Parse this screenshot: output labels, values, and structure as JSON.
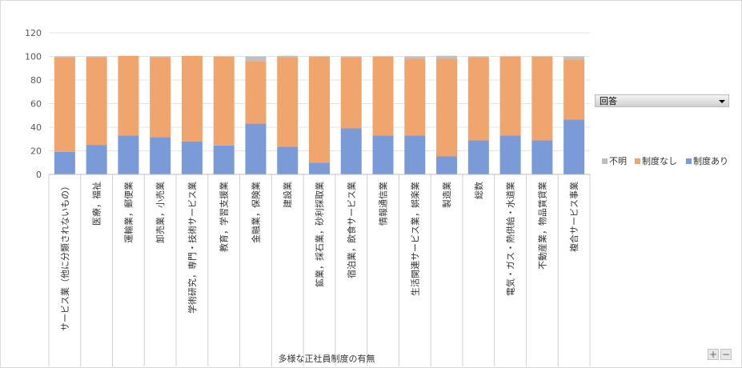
{
  "chart_data": {
    "type": "bar",
    "stacked": true,
    "xlabel": "多様な正社員制度の有無",
    "ylim": [
      0,
      120
    ],
    "yticks": [
      0,
      20,
      40,
      60,
      80,
      100,
      120
    ],
    "grid": true,
    "legend_placement": "right",
    "categories": [
      "サービス業（他に分類されないもの）",
      "医療，福祉",
      "運輸業，郵便業",
      "卸売業，小売業",
      "学術研究，専門・技術サービス業",
      "教育，学習支援業",
      "金融業，保険業",
      "建設業",
      "鉱業，採石業，砂利採取業",
      "宿泊業，飲食サービス業",
      "情報通信業",
      "生活関連サービス業，娯楽業",
      "製造業",
      "総数",
      "電気・ガス・熱供給・水道業",
      "不動産業，物品賃貸業",
      "複合サービス事業"
    ],
    "series": [
      {
        "name": "制度あり",
        "color": "#7a9ad8",
        "values": [
          19,
          25,
          33,
          31.5,
          28,
          24.5,
          43,
          23.5,
          10,
          39,
          33,
          33,
          15.5,
          29,
          33,
          29,
          46.5
        ]
      },
      {
        "name": "制度なし",
        "color": "#f0a56e",
        "values": [
          80.5,
          74.5,
          67.5,
          68,
          72.5,
          75.5,
          53,
          76,
          90,
          60.5,
          67,
          65,
          82.5,
          70.5,
          67,
          71,
          51
        ]
      },
      {
        "name": "不明",
        "color": "#bfbfbf",
        "values": [
          0.5,
          0.5,
          0,
          0.5,
          0,
          0,
          4,
          1,
          0,
          0.5,
          0,
          2,
          2.5,
          0.5,
          0,
          0,
          2.5
        ]
      }
    ]
  },
  "legend": {
    "title": "回答"
  },
  "controls": {
    "zoom_in": "+",
    "zoom_out": "−"
  }
}
